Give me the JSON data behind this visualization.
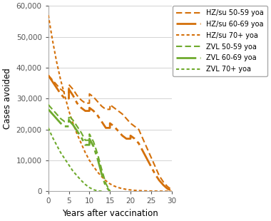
{
  "title": "",
  "xlabel": "Years after vaccination",
  "ylabel": "Cases avoided",
  "xlim": [
    0,
    30
  ],
  "ylim": [
    0,
    60000
  ],
  "yticks": [
    0,
    10000,
    20000,
    30000,
    40000,
    50000,
    60000
  ],
  "ytick_labels": [
    "0",
    "10,000",
    "20,000",
    "30,000",
    "40,000",
    "50,000",
    "60,000"
  ],
  "xticks": [
    0,
    5,
    10,
    15,
    20,
    25,
    30
  ],
  "orange_color": "#D4700A",
  "green_color": "#6FAA2E",
  "background": "#FFFFFF",
  "series": {
    "hz_su_50_59": {
      "x": [
        0,
        1,
        2,
        3,
        4,
        5,
        5,
        6,
        7,
        8,
        9,
        10,
        10,
        11,
        12,
        13,
        14,
        15,
        15,
        16,
        17,
        18,
        19,
        20,
        20,
        21,
        22,
        23,
        24,
        25,
        26,
        27,
        28,
        29,
        30
      ],
      "y": [
        37500,
        36000,
        34500,
        33000,
        32000,
        32000,
        34500,
        33000,
        31000,
        29500,
        28500,
        28500,
        31500,
        30500,
        29000,
        27500,
        26500,
        26500,
        28000,
        27000,
        26000,
        25000,
        23500,
        22000,
        22000,
        21000,
        20000,
        17000,
        14000,
        11000,
        8000,
        5000,
        3000,
        1500,
        500
      ],
      "color": "#D4700A",
      "linestyle": "shortdash",
      "linewidth": 1.5,
      "label": "HZ/su 50-59 yoa"
    },
    "hz_su_60_69": {
      "x": [
        0,
        1,
        2,
        3,
        4,
        5,
        5,
        6,
        7,
        8,
        9,
        10,
        10,
        11,
        12,
        13,
        14,
        15,
        15,
        16,
        17,
        18,
        19,
        20,
        20,
        21,
        22,
        23,
        24,
        25,
        26,
        27,
        28,
        29,
        30
      ],
      "y": [
        37500,
        35500,
        33500,
        31500,
        30000,
        30000,
        33000,
        31000,
        28500,
        27000,
        26000,
        26000,
        27000,
        26000,
        24500,
        22500,
        20500,
        20500,
        22000,
        21000,
        19500,
        18000,
        17000,
        17000,
        18000,
        17000,
        15500,
        13000,
        10500,
        8000,
        5500,
        3500,
        2000,
        800,
        200
      ],
      "color": "#D4700A",
      "linestyle": "longdashdot",
      "linewidth": 2.0,
      "label": "HZ/su 60-69 yoa"
    },
    "hz_su_70p": {
      "x": [
        0,
        1,
        2,
        3,
        4,
        5,
        6,
        7,
        8,
        9,
        10,
        11,
        12,
        13,
        14,
        15,
        16,
        17,
        18,
        19,
        20,
        21,
        22,
        23,
        24,
        25,
        26,
        27,
        28,
        29,
        30
      ],
      "y": [
        57000,
        49000,
        42000,
        36000,
        31000,
        26000,
        22000,
        18500,
        15500,
        12500,
        10000,
        8000,
        6200,
        4700,
        3400,
        2400,
        1700,
        1200,
        850,
        600,
        420,
        290,
        200,
        140,
        95,
        65,
        42,
        25,
        15,
        8,
        3
      ],
      "color": "#D4700A",
      "linestyle": "dotted",
      "linewidth": 1.5,
      "label": "HZ/su 70+ yoa"
    },
    "zvl_50_59": {
      "x": [
        0,
        1,
        2,
        3,
        4,
        5,
        5,
        6,
        7,
        8,
        9,
        10,
        10,
        11,
        12,
        13,
        14,
        15
      ],
      "y": [
        28000,
        26500,
        25000,
        23500,
        22500,
        22500,
        24500,
        23000,
        21000,
        19000,
        16500,
        16500,
        18500,
        16000,
        12000,
        7000,
        2500,
        0
      ],
      "color": "#6FAA2E",
      "linestyle": "shortdash",
      "linewidth": 1.5,
      "label": "ZVL 50-59 yoa"
    },
    "zvl_60_69": {
      "x": [
        0,
        1,
        2,
        3,
        4,
        5,
        5,
        6,
        7,
        8,
        9,
        10,
        10,
        11,
        12,
        13,
        14,
        15
      ],
      "y": [
        26500,
        25000,
        23500,
        22000,
        21000,
        21000,
        23000,
        21500,
        19500,
        17500,
        15000,
        15000,
        17000,
        14500,
        10500,
        5500,
        1500,
        0
      ],
      "color": "#6FAA2E",
      "linestyle": "longdashdot",
      "linewidth": 2.0,
      "label": "ZVL 60-69 yoa"
    },
    "zvl_70p": {
      "x": [
        0,
        1,
        2,
        3,
        4,
        5,
        6,
        7,
        8,
        9,
        10,
        11,
        12,
        13
      ],
      "y": [
        20500,
        17500,
        15000,
        12500,
        10500,
        8500,
        6500,
        5000,
        3500,
        2200,
        1200,
        500,
        100,
        0
      ],
      "color": "#6FAA2E",
      "linestyle": "dotted",
      "linewidth": 1.5,
      "label": "ZVL 70+ yoa"
    }
  }
}
